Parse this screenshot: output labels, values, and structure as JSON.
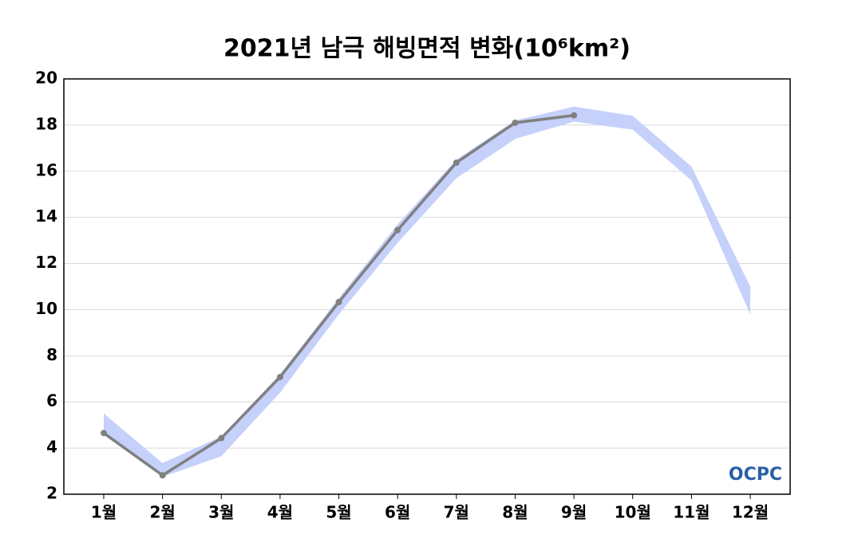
{
  "chart_data": {
    "type": "line",
    "title": "2021년 남극 해빙면적 변화(10⁶km²)",
    "categories": [
      "1월",
      "2월",
      "3월",
      "4월",
      "5월",
      "6월",
      "7월",
      "8월",
      "9월",
      "10월",
      "11월",
      "12월"
    ],
    "series": [
      {
        "color": "#808080",
        "values": [
          4.65,
          2.82,
          4.43,
          7.08,
          10.33,
          13.45,
          16.37,
          18.1,
          18.42,
          null,
          null,
          null
        ]
      }
    ],
    "band": {
      "color": "#c5d0fb",
      "upper": [
        5.5,
        3.35,
        4.5,
        7.2,
        10.5,
        13.7,
        16.5,
        18.2,
        18.8,
        18.4,
        16.2,
        11.0
      ],
      "lower": [
        4.6,
        2.75,
        3.65,
        6.4,
        9.8,
        12.9,
        15.7,
        17.4,
        18.15,
        17.8,
        15.6,
        9.8
      ]
    },
    "ylim": [
      2,
      20
    ],
    "yticks": [
      2,
      4,
      6,
      8,
      10,
      12,
      14,
      16,
      18,
      20
    ],
    "grid": true,
    "watermark": "OCPC"
  }
}
